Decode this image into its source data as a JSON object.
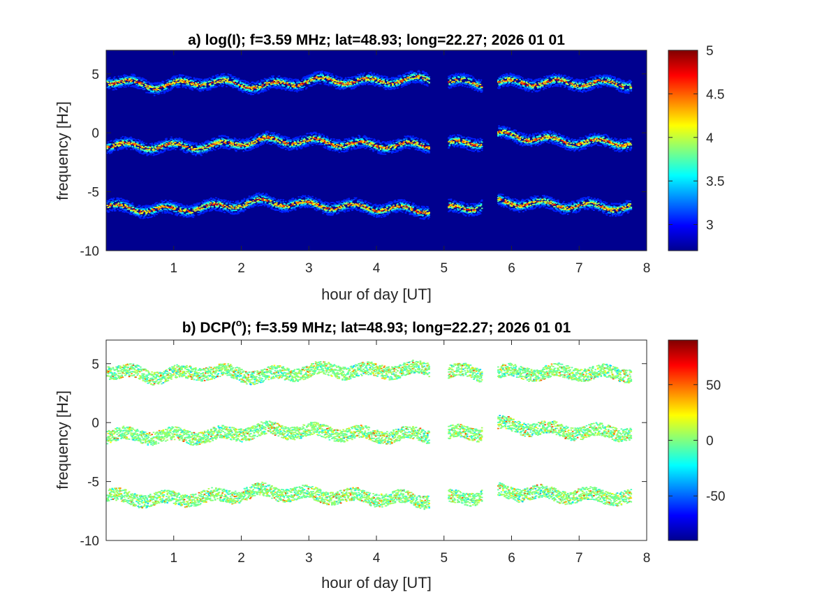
{
  "chart_data": [
    {
      "type": "heatmap",
      "title_prefix": "a) log(I); f=3.59 MHz;  lat=48.93; long=22.27; 2026 01 01",
      "title_sup": "",
      "title_suffix": "",
      "xlabel": "hour of day [UT]",
      "ylabel": "frequency [Hz]",
      "xlim": [
        0,
        8
      ],
      "ylim": [
        -10,
        7
      ],
      "xticks": [
        "1",
        "2",
        "3",
        "4",
        "5",
        "6",
        "7",
        "8"
      ],
      "yticks": [
        "5",
        "0",
        "-5",
        "-10"
      ],
      "colorbar": {
        "range": [
          2.7,
          5
        ],
        "ticks": [
          "5",
          "4.5",
          "4",
          "3.5",
          "3"
        ],
        "colormap": "jet"
      },
      "background": "#00008f",
      "bands": [
        {
          "name": "upper",
          "center_freq_hz": [
            4.5,
            4.0,
            4.4,
            4.0,
            4.5,
            4.4,
            4.6,
            4.2,
            4.3,
            4.3,
            4.2
          ]
        },
        {
          "name": "middle",
          "center_freq_hz": [
            -1.0,
            -1.1,
            -1.1,
            -0.6,
            -0.7,
            -1.0,
            -1.0,
            -0.8,
            -0.1,
            -0.7,
            -0.8
          ]
        },
        {
          "name": "lower",
          "center_freq_hz": [
            -6.2,
            -6.5,
            -6.3,
            -5.8,
            -6.1,
            -6.3,
            -6.5,
            -6.2,
            -5.8,
            -6.1,
            -6.3
          ]
        }
      ],
      "band_hours": [
        0,
        0.7,
        1.5,
        2.3,
        3.1,
        3.9,
        4.7,
        5.5,
        5.8,
        6.8,
        7.75
      ],
      "data_gaps_hours": [
        [
          4.78,
          5.05
        ],
        [
          5.55,
          5.78
        ]
      ]
    },
    {
      "type": "heatmap",
      "title_prefix": "b) DCP(",
      "title_sup": "o",
      "title_suffix": "); f=3.59 MHz;  lat=48.93; long=22.27; 2026 01 01",
      "xlabel": "hour of day [UT]",
      "ylabel": "frequency [Hz]",
      "xlim": [
        0,
        8
      ],
      "ylim": [
        -10,
        7
      ],
      "xticks": [
        "1",
        "2",
        "3",
        "4",
        "5",
        "6",
        "7",
        "8"
      ],
      "yticks": [
        "5",
        "0",
        "-5",
        "-10"
      ],
      "colorbar": {
        "range": [
          -90,
          90
        ],
        "ticks": [
          "50",
          "0",
          "-50"
        ],
        "colormap": "jet"
      },
      "background": "#ffffff",
      "dominant_value": 0
    }
  ]
}
